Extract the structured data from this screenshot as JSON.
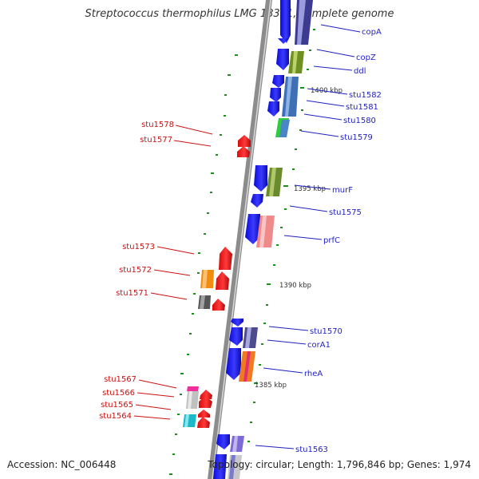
{
  "title": "Streptococcus thermophilus LMG 18311, complete genome",
  "accession": "Accession: NC_006448",
  "topology": "Topology: circular; Length: 1,796,846 bp; Genes: 1,974",
  "colors": {
    "backbone": "#8a8a8a",
    "forward_label": "#1f1fbf",
    "reverse_label": "#cc1111",
    "forward_gene": "#1616ee",
    "reverse_gene": "#ee1111",
    "tick": "#228b22"
  },
  "forward_labels": [
    "copA",
    "copZ",
    "ddl",
    "stu1582",
    "stu1581",
    "stu1580",
    "stu1579",
    "murF",
    "stu1575",
    "prfC",
    "stu1570",
    "corA1",
    "rheA",
    "stu1563"
  ],
  "reverse_labels": [
    "stu1578",
    "stu1577",
    "stu1573",
    "stu1572",
    "stu1571",
    "stu1567",
    "stu1566",
    "stu1565",
    "stu1564"
  ],
  "scale_labels": [
    "1400 kbp",
    "1395 kbp",
    "1390 kbp",
    "1385 kbp"
  ]
}
